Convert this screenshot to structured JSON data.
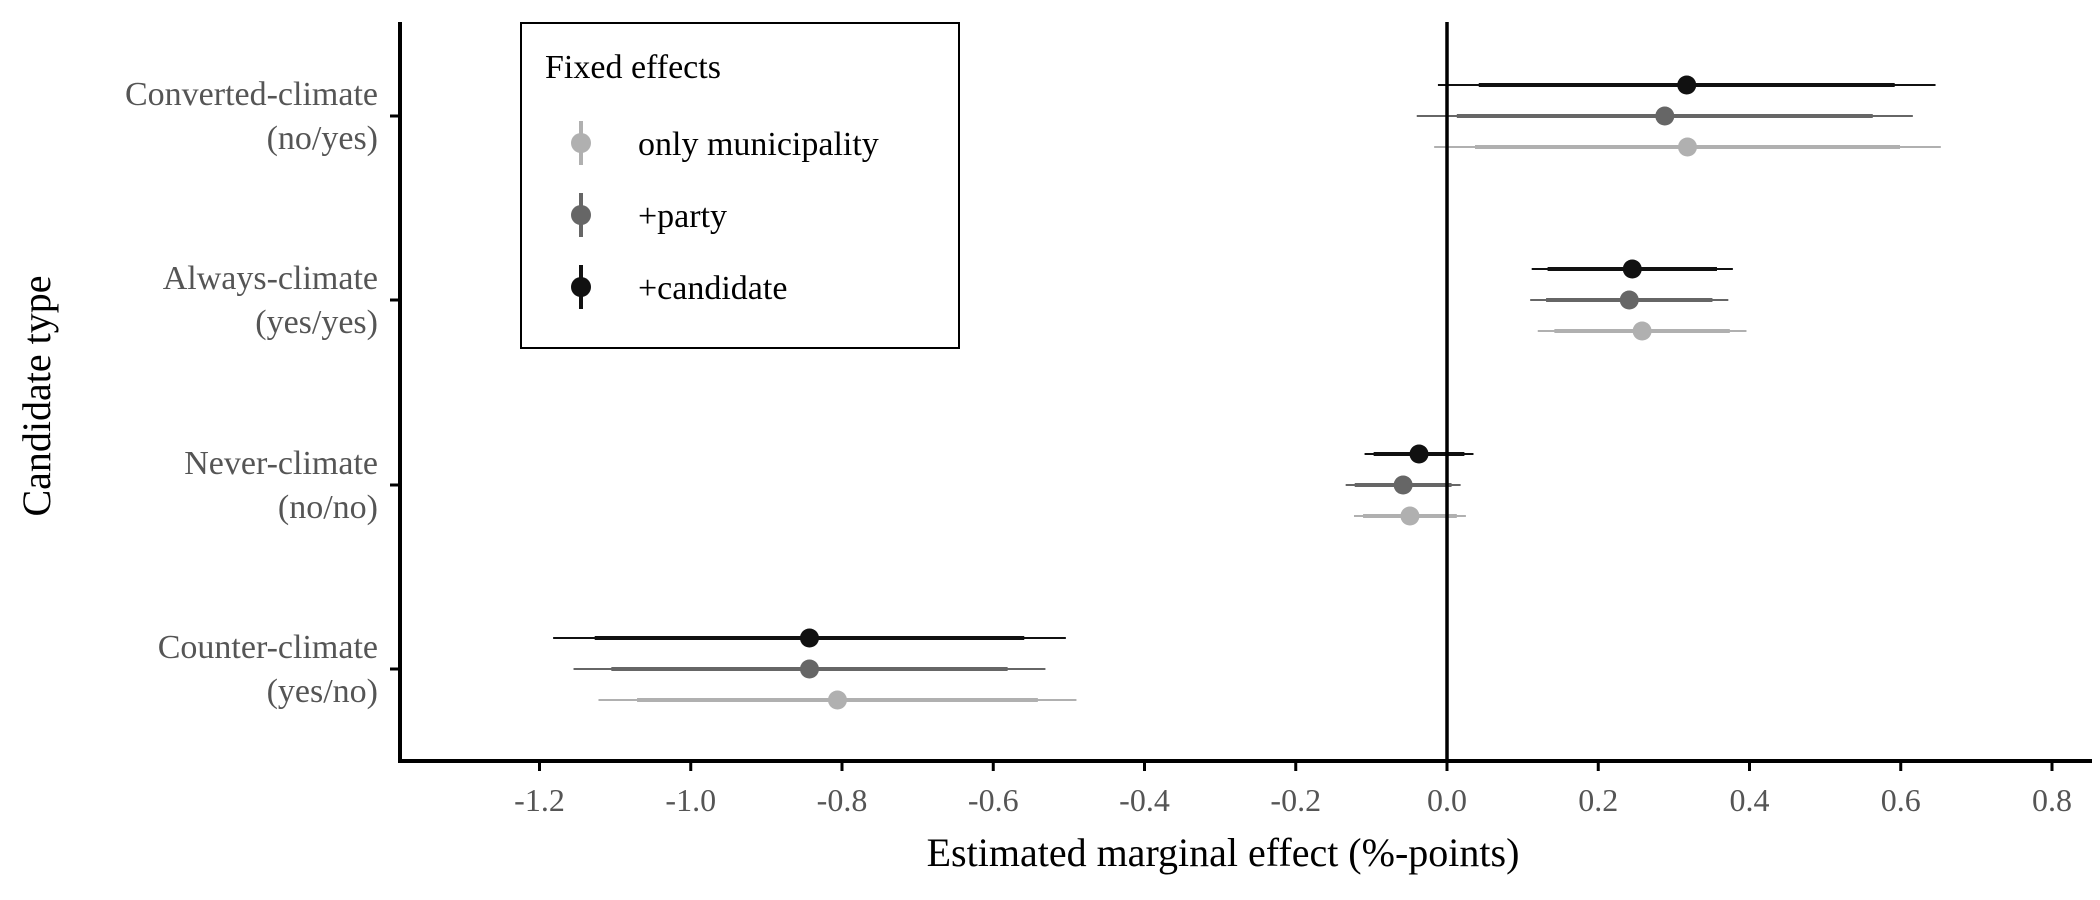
{
  "chart_data": {
    "type": "forest",
    "title": "",
    "xlabel": "Estimated marginal effect (%-points)",
    "ylabel": "Candidate type",
    "xlim": [
      -1.38,
      0.85
    ],
    "xticks": [
      -1.2,
      -1.0,
      -0.8,
      -0.6,
      -0.4,
      -0.2,
      0.0,
      0.2,
      0.4,
      0.6,
      0.8
    ],
    "xtick_labels": [
      "-1.2",
      "-1.0",
      "-0.8",
      "-0.6",
      "-0.4",
      "-0.2",
      "0.0",
      "0.2",
      "0.4",
      "0.6",
      "0.8"
    ],
    "reference_line": 0.0,
    "categories": [
      {
        "id": "converted",
        "line1": "Converted-climate",
        "line2": "(no/yes)"
      },
      {
        "id": "always",
        "line1": "Always-climate",
        "line2": "(yes/yes)"
      },
      {
        "id": "never",
        "line1": "Never-climate",
        "line2": "(no/no)"
      },
      {
        "id": "counter",
        "line1": "Counter-climate",
        "line2": "(yes/no)"
      }
    ],
    "legend": {
      "title": "Fixed effects",
      "placement": "top-left"
    },
    "series": [
      {
        "name": "+candidate",
        "color": "#111111",
        "estimates": [
          0.317,
          0.245,
          -0.037,
          -0.843
        ],
        "ci90": [
          [
            0.042,
            0.592
          ],
          [
            0.133,
            0.357
          ],
          [
            -0.097,
            0.023
          ],
          [
            -1.127,
            -0.559
          ]
        ],
        "ci95": [
          [
            -0.012,
            0.646
          ],
          [
            0.112,
            0.378
          ],
          [
            -0.109,
            0.035
          ],
          [
            -1.182,
            -0.504
          ]
        ]
      },
      {
        "name": "+party",
        "color": "#666666",
        "estimates": [
          0.288,
          0.241,
          -0.058,
          -0.843
        ],
        "ci90": [
          [
            0.013,
            0.563
          ],
          [
            0.131,
            0.351
          ],
          [
            -0.122,
            0.006
          ],
          [
            -1.105,
            -0.581
          ]
        ],
        "ci95": [
          [
            -0.04,
            0.616
          ],
          [
            0.11,
            0.372
          ],
          [
            -0.134,
            0.018
          ],
          [
            -1.155,
            -0.531
          ]
        ]
      },
      {
        "name": "only municipality",
        "color": "#b0b0b0",
        "estimates": [
          0.318,
          0.258,
          -0.049,
          -0.806
        ],
        "ci90": [
          [
            0.037,
            0.599
          ],
          [
            0.142,
            0.374
          ],
          [
            -0.111,
            0.013
          ],
          [
            -1.071,
            -0.541
          ]
        ],
        "ci95": [
          [
            -0.017,
            0.653
          ],
          [
            0.12,
            0.396
          ],
          [
            -0.123,
            0.025
          ],
          [
            -1.122,
            -0.49
          ]
        ]
      }
    ]
  }
}
